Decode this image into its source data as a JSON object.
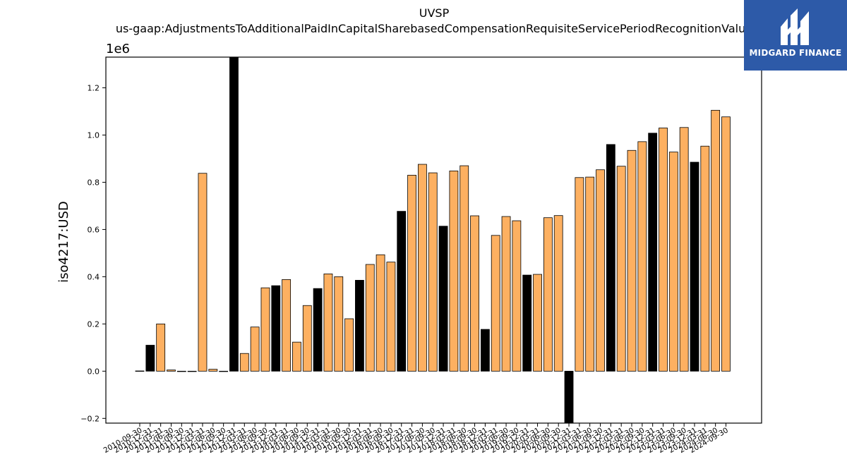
{
  "chart_data": {
    "type": "bar",
    "title": "UVSP",
    "subtitle": "us-gaap:AdjustmentsToAdditionalPaidInCapitalSharebasedCompensationRequisiteServicePeriodRecognitionValue",
    "ylabel": "iso4217:USD",
    "xlabel": "",
    "y_offset_label": "1e6",
    "y_scale": 1000000,
    "ylim": [
      -220000,
      1330000
    ],
    "yticks": [
      -0.2,
      0.0,
      0.2,
      0.4,
      0.6,
      0.8,
      1.0,
      1.2
    ],
    "ytick_labels": [
      "−0.2",
      "0.0",
      "0.2",
      "0.4",
      "0.6",
      "0.8",
      "1.0",
      "1.2"
    ],
    "grid": false,
    "colors": {
      "highlight": "#000000",
      "normal": "#fdb061",
      "edge": "#000000"
    },
    "categories": [
      "2010-09-30",
      "2010-12-31",
      "2011-03-31",
      "2011-06-30",
      "2011-09-30",
      "2011-12-31",
      "2012-03-31",
      "2012-06-30",
      "2012-09-30",
      "2012-12-31",
      "2013-03-31",
      "2013-06-30",
      "2013-09-30",
      "2013-12-31",
      "2014-03-31",
      "2014-06-30",
      "2014-09-30",
      "2014-12-31",
      "2015-03-31",
      "2015-06-30",
      "2015-09-30",
      "2015-12-31",
      "2016-03-31",
      "2016-06-30",
      "2016-09-30",
      "2016-12-31",
      "2017-03-31",
      "2017-06-30",
      "2017-09-30",
      "2017-12-31",
      "2018-03-31",
      "2018-06-30",
      "2018-09-30",
      "2018-12-31",
      "2019-03-31",
      "2019-06-30",
      "2019-09-30",
      "2019-12-31",
      "2020-03-31",
      "2020-06-30",
      "2020-09-30",
      "2020-12-31",
      "2021-03-31",
      "2021-06-30",
      "2021-09-30",
      "2021-12-31",
      "2022-03-31",
      "2022-06-30",
      "2022-09-30",
      "2022-12-31",
      "2023-03-31",
      "2023-06-30",
      "2023-09-30",
      "2023-12-31",
      "2024-03-31",
      "2024-06-30",
      "2024-09-30"
    ],
    "values": [
      1000,
      110000,
      200000,
      5000,
      0,
      0,
      838000,
      8000,
      0,
      1330000,
      75000,
      187000,
      353000,
      362000,
      388000,
      123000,
      278000,
      350000,
      412000,
      400000,
      222000,
      385000,
      452000,
      493000,
      462000,
      677000,
      830000,
      876000,
      840000,
      614000,
      848000,
      870000,
      658000,
      177000,
      575000,
      655000,
      637000,
      407000,
      410000,
      650000,
      659000,
      -220000,
      820000,
      822000,
      853000,
      960000,
      868000,
      935000,
      972000,
      1008000,
      1030000,
      928000,
      1032000,
      885000,
      953000,
      1105000,
      1077000
    ],
    "highlight": [
      false,
      true,
      false,
      false,
      false,
      false,
      false,
      false,
      false,
      true,
      false,
      false,
      false,
      true,
      false,
      false,
      false,
      true,
      false,
      false,
      false,
      true,
      false,
      false,
      false,
      true,
      false,
      false,
      false,
      true,
      false,
      false,
      false,
      true,
      false,
      false,
      false,
      true,
      false,
      false,
      false,
      true,
      false,
      false,
      false,
      true,
      false,
      false,
      false,
      true,
      false,
      false,
      false,
      true,
      false,
      false,
      false
    ]
  },
  "logo": {
    "text": "MIDGARD FINANCE",
    "icon": "midgard-logo-icon"
  }
}
